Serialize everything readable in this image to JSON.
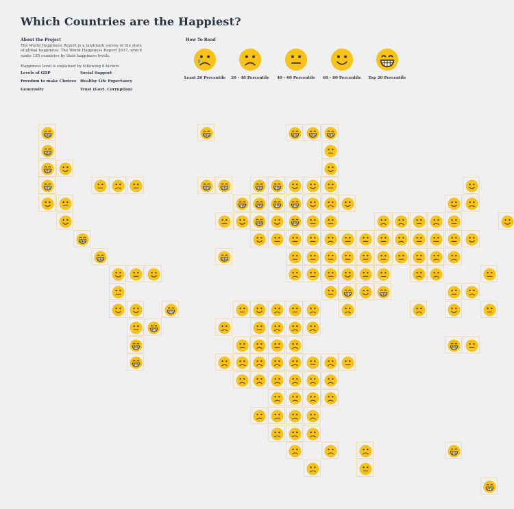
{
  "title": "Which Countries are the Happiest?",
  "about": {
    "heading": "About the Project",
    "text": "The World Happiness Report is a landmark survey of the state of global happiness. The World Happiness Report 2017, which ranks 155 countries by their happiness levels.",
    "factors_intro": "Happiness level is explained by following 6 factors",
    "factors": [
      "Levels of GDP",
      "Social Support",
      "Freedom to make Choices",
      "Healthy Life Expectancy",
      "Generosity",
      "Trust (Govt. Corruption)"
    ]
  },
  "how_to_read": {
    "heading": "How To Read",
    "levels": [
      {
        "label": "Least 20 Percentile",
        "face": "cry"
      },
      {
        "label": "20 - 40 Percentile",
        "face": "sad"
      },
      {
        "label": "40 - 60 Percentile",
        "face": "neutral"
      },
      {
        "label": "60 - 80 Percentile",
        "face": "smile"
      },
      {
        "label": "Top 20 Percentile",
        "face": "grin"
      }
    ]
  },
  "colors": {
    "face": "#f7c21a",
    "feature": "#4a3a10",
    "cell_border": "#f1dcb0",
    "background": "#f0f0f0"
  },
  "chart_data": {
    "type": "heatmap",
    "description_scale": "0=cry,1=sad,2=neutral,3=smile,4=grin",
    "rows": [
      [
        [
          1,
          4
        ],
        [
          10,
          4
        ],
        [
          15,
          4
        ],
        [
          16,
          4
        ],
        [
          17,
          4
        ]
      ],
      [
        [
          1,
          4
        ],
        [
          17,
          2
        ]
      ],
      [
        [
          1,
          4
        ],
        [
          2,
          3
        ],
        [
          17,
          3
        ]
      ],
      [
        [
          1,
          4
        ],
        [
          4,
          2
        ],
        [
          5,
          1
        ],
        [
          6,
          2
        ],
        [
          10,
          4
        ],
        [
          11,
          4
        ],
        [
          13,
          4
        ],
        [
          14,
          4
        ],
        [
          15,
          3
        ],
        [
          16,
          3
        ],
        [
          17,
          2
        ],
        [
          25,
          3
        ]
      ],
      [
        [
          1,
          3
        ],
        [
          2,
          2
        ],
        [
          12,
          4
        ],
        [
          13,
          4
        ],
        [
          14,
          4
        ],
        [
          15,
          4
        ],
        [
          16,
          3
        ],
        [
          17,
          1
        ],
        [
          18,
          3
        ],
        [
          24,
          3
        ],
        [
          25,
          1
        ]
      ],
      [
        [
          2,
          3
        ],
        [
          11,
          2
        ],
        [
          12,
          3
        ],
        [
          13,
          4
        ],
        [
          14,
          3
        ],
        [
          15,
          4
        ],
        [
          16,
          2
        ],
        [
          17,
          2
        ],
        [
          20,
          1
        ],
        [
          21,
          1
        ],
        [
          22,
          2
        ],
        [
          23,
          1
        ],
        [
          24,
          2
        ],
        [
          27,
          3
        ]
      ],
      [
        [
          3,
          4
        ],
        [
          13,
          3
        ],
        [
          14,
          2
        ],
        [
          15,
          2
        ],
        [
          16,
          2
        ],
        [
          17,
          1
        ],
        [
          18,
          2
        ],
        [
          19,
          2
        ],
        [
          20,
          2
        ],
        [
          21,
          1
        ],
        [
          22,
          2
        ],
        [
          23,
          2
        ],
        [
          24,
          2
        ],
        [
          25,
          3
        ]
      ],
      [
        [
          4,
          4
        ],
        [
          11,
          4
        ],
        [
          15,
          2
        ],
        [
          16,
          2
        ],
        [
          17,
          2
        ],
        [
          18,
          2
        ],
        [
          19,
          2
        ],
        [
          20,
          2
        ],
        [
          21,
          2
        ],
        [
          22,
          2
        ],
        [
          23,
          1
        ],
        [
          24,
          1
        ]
      ],
      [
        [
          5,
          3
        ],
        [
          6,
          2
        ],
        [
          7,
          3
        ],
        [
          15,
          1
        ],
        [
          16,
          2
        ],
        [
          17,
          2
        ],
        [
          18,
          3
        ],
        [
          19,
          2
        ],
        [
          20,
          2
        ],
        [
          22,
          1
        ],
        [
          23,
          1
        ],
        [
          26,
          2
        ]
      ],
      [
        [
          5,
          2
        ],
        [
          17,
          2
        ],
        [
          18,
          4
        ],
        [
          19,
          3
        ],
        [
          20,
          4
        ],
        [
          24,
          2
        ],
        [
          25,
          1
        ]
      ],
      [
        [
          5,
          3
        ],
        [
          6,
          3
        ],
        [
          8,
          4
        ],
        [
          12,
          2
        ],
        [
          13,
          3
        ],
        [
          14,
          1
        ],
        [
          15,
          2
        ],
        [
          16,
          1
        ],
        [
          18,
          1
        ],
        [
          22,
          1
        ],
        [
          24,
          3
        ],
        [
          26,
          2
        ]
      ],
      [
        [
          6,
          2
        ],
        [
          7,
          4
        ],
        [
          11,
          1
        ],
        [
          13,
          2
        ],
        [
          14,
          1
        ],
        [
          15,
          1
        ],
        [
          16,
          1
        ]
      ],
      [
        [
          6,
          4
        ],
        [
          12,
          2
        ],
        [
          13,
          1
        ],
        [
          14,
          2
        ],
        [
          15,
          1
        ],
        [
          24,
          4
        ],
        [
          25,
          2
        ]
      ],
      [
        [
          6,
          4
        ],
        [
          11,
          1
        ],
        [
          12,
          1
        ],
        [
          13,
          1
        ],
        [
          14,
          1
        ],
        [
          15,
          1
        ],
        [
          16,
          2
        ],
        [
          17,
          1
        ],
        [
          18,
          2
        ]
      ],
      [
        [
          12,
          1
        ],
        [
          13,
          1
        ],
        [
          14,
          1
        ],
        [
          15,
          1
        ],
        [
          16,
          1
        ],
        [
          17,
          1
        ]
      ],
      [
        [
          14,
          1
        ],
        [
          15,
          1
        ],
        [
          16,
          1
        ],
        [
          17,
          1
        ]
      ],
      [
        [
          13,
          1
        ],
        [
          14,
          1
        ],
        [
          15,
          1
        ],
        [
          16,
          1
        ]
      ],
      [
        [
          14,
          1
        ],
        [
          15,
          1
        ],
        [
          16,
          1
        ]
      ],
      [
        [
          15,
          1
        ],
        [
          17,
          1
        ],
        [
          19,
          1
        ],
        [
          24,
          4
        ]
      ],
      [
        [
          16,
          1
        ],
        [
          19,
          2
        ]
      ],
      [
        [
          26,
          4
        ]
      ]
    ]
  }
}
